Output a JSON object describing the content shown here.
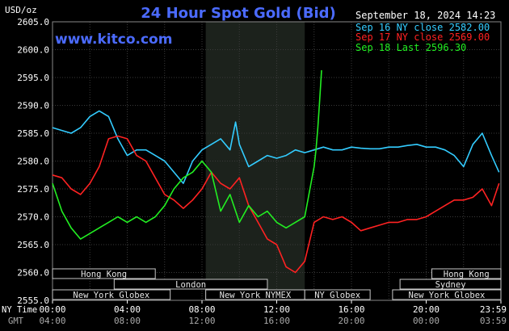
{
  "chart_data": {
    "type": "line",
    "title": "24 Hour Spot Gold (Bid)",
    "website": "www.kitco.com",
    "unit_label": "USD/oz",
    "date_label": "September 18, 2024 14:23",
    "ylim": [
      2555,
      2605
    ],
    "xlim_hours": [
      0,
      24
    ],
    "y_ticks": [
      "2605.0",
      "2600.0",
      "2595.0",
      "2590.0",
      "2585.0",
      "2580.0",
      "2575.0",
      "2570.0",
      "2565.0",
      "2560.0",
      "2555.0"
    ],
    "ny_time_label": "NY Time",
    "gmt_label": "GMT",
    "ny_time_ticks": [
      "00:00",
      "04:00",
      "08:00",
      "12:00",
      "16:00",
      "20:00",
      "23:59"
    ],
    "gmt_ticks": [
      "04:00",
      "08:00",
      "12:00",
      "16:00",
      "20:00",
      "00:00",
      "03:59"
    ],
    "nymex_shade_hours": [
      8.2,
      13.5
    ],
    "legend": [
      {
        "label": "Sep 16 NY close 2582.00",
        "color": "#33ccff"
      },
      {
        "label": "Sep 17 NY close 2569.00",
        "color": "#ff2222"
      },
      {
        "label": "Sep 18 Last 2596.30",
        "color": "#22ee22"
      }
    ],
    "series": [
      {
        "name": "Sep 16",
        "color": "#33ccff",
        "x": [
          0,
          0.5,
          1,
          1.5,
          2,
          2.5,
          3,
          3.5,
          4,
          4.5,
          5,
          5.5,
          6,
          6.5,
          7,
          7.5,
          8,
          8.5,
          9,
          9.5,
          9.8,
          10,
          10.5,
          11,
          11.5,
          12,
          12.5,
          13,
          13.5,
          14,
          14.5,
          15,
          15.5,
          16,
          16.5,
          17,
          17.5,
          18,
          18.5,
          19,
          19.5,
          20,
          20.5,
          21,
          21.5,
          22,
          22.5,
          23,
          23.5,
          23.9
        ],
        "values": [
          2586,
          2585.5,
          2585,
          2586,
          2588,
          2589,
          2588,
          2584,
          2581,
          2582,
          2582,
          2581,
          2580,
          2578,
          2576,
          2580,
          2582,
          2583,
          2584,
          2582,
          2587,
          2583,
          2579,
          2580,
          2581,
          2580.5,
          2581,
          2582,
          2581.5,
          2582,
          2582.5,
          2582,
          2582,
          2582.5,
          2582.3,
          2582.2,
          2582.2,
          2582.5,
          2582.5,
          2582.8,
          2583,
          2582.5,
          2582.5,
          2582,
          2581,
          2579,
          2583,
          2585,
          2581,
          2578
        ]
      },
      {
        "name": "Sep 17",
        "color": "#ff2222",
        "x": [
          0,
          0.5,
          1,
          1.5,
          2,
          2.5,
          3,
          3.5,
          4,
          4.5,
          5,
          5.5,
          6,
          6.5,
          7,
          7.5,
          8,
          8.5,
          9,
          9.5,
          10,
          10.5,
          11,
          11.5,
          12,
          12.5,
          13,
          13.5,
          14,
          14.5,
          15,
          15.5,
          16,
          16.5,
          17,
          17.5,
          18,
          18.5,
          19,
          19.5,
          20,
          20.5,
          21,
          21.5,
          22,
          22.5,
          23,
          23.5,
          23.9
        ],
        "values": [
          2577.5,
          2577,
          2575,
          2574,
          2576,
          2579,
          2584,
          2584.5,
          2584,
          2581,
          2580,
          2577,
          2574,
          2573,
          2571.5,
          2573,
          2575,
          2578,
          2576,
          2575,
          2577,
          2572,
          2569,
          2566,
          2565,
          2561,
          2560,
          2562,
          2569,
          2570,
          2569.5,
          2570,
          2569,
          2567.5,
          2568,
          2568.5,
          2569,
          2569,
          2569.5,
          2569.5,
          2570,
          2571,
          2572,
          2573,
          2573,
          2573.5,
          2575,
          2572,
          2576
        ]
      },
      {
        "name": "Sep 18",
        "color": "#22ee22",
        "x": [
          0,
          0.5,
          1,
          1.5,
          2,
          2.5,
          3,
          3.5,
          4,
          4.5,
          5,
          5.5,
          6,
          6.5,
          7,
          7.5,
          8,
          8.5,
          9,
          9.5,
          10,
          10.5,
          11,
          11.5,
          12,
          12.5,
          13,
          13.5,
          14,
          14.1,
          14.2,
          14.3,
          14.4
        ],
        "values": [
          2576,
          2571,
          2568,
          2566,
          2567,
          2568,
          2569,
          2570,
          2569,
          2570,
          2569,
          2570,
          2572,
          2575,
          2577,
          2578,
          2580,
          2578,
          2571,
          2574,
          2569,
          2572,
          2570,
          2571,
          2569,
          2568,
          2569,
          2570,
          2579,
          2582,
          2586,
          2591,
          2596.3
        ]
      }
    ],
    "sessions": [
      {
        "label": "Hong Kong",
        "start": 0,
        "end": 5.5,
        "row": 0
      },
      {
        "label": "London",
        "start": 3.3,
        "end": 11.5,
        "row": 1
      },
      {
        "label": "New York Globex",
        "start": 0,
        "end": 6.3,
        "row": 2
      },
      {
        "label": "New York NYMEX",
        "start": 8.2,
        "end": 13.5,
        "row": 2
      },
      {
        "label": "NY Globex",
        "start": 13.5,
        "end": 17.0,
        "row": 2
      },
      {
        "label": "Hong Kong",
        "start": 20.3,
        "end": 24,
        "row": 0
      },
      {
        "label": "Sydney",
        "start": 18.6,
        "end": 24,
        "row": 1
      },
      {
        "label": "New York Globex",
        "start": 18.2,
        "end": 24,
        "row": 2
      }
    ]
  }
}
